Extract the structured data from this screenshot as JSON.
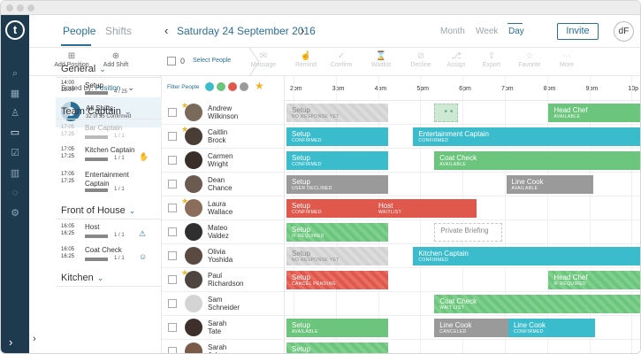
{
  "nav": {
    "logo": "t",
    "items": [
      {
        "name": "search-icon",
        "glyph": "⌕"
      },
      {
        "name": "calendar-icon",
        "glyph": "▦"
      },
      {
        "name": "user-icon",
        "glyph": "♙"
      },
      {
        "name": "inbox-icon",
        "glyph": "▭"
      },
      {
        "name": "check-icon",
        "glyph": "☑"
      },
      {
        "name": "bar-chart-icon",
        "glyph": "▥"
      },
      {
        "name": "chat-icon",
        "glyph": "◌"
      },
      {
        "name": "gear-icon",
        "glyph": "⚙"
      }
    ],
    "expand": "›"
  },
  "header": {
    "tab_people": "People",
    "tab_shifts": "Shifts",
    "prev": "‹",
    "date": "Saturday 24 September 2016",
    "next": "›",
    "range_month": "Month",
    "range_week": "Week",
    "range_day": "Day",
    "invite": "Invite",
    "user_initials": "dF"
  },
  "toolbar": {
    "add_position": "Add Position",
    "add_shift": "Add Shift",
    "selected_count": "0",
    "select_people": "Select People",
    "actions": [
      "Message",
      "Remind",
      "Confirm",
      "Waitlist",
      "Decline",
      "Assign",
      "Export",
      "Favorite",
      "More"
    ]
  },
  "sidebar": {
    "sorted_by_label": "Sorted by:",
    "sorted_by_value": "Position",
    "all_shifts_title": "All Shifts",
    "all_shifts_sub": "32 of 55 Confirmed",
    "all_shifts_confirmed_fraction": 0.58,
    "groups": [
      {
        "title": "General",
        "shifts": [
          {
            "time": "14:00\n15:00",
            "name": "Setup",
            "frac": "4 / 25",
            "faint": false
          }
        ]
      },
      {
        "title": "Team Captain",
        "shifts": [
          {
            "time": "17:05\n17:25",
            "name": "Bar Captain",
            "frac": "1 / 1",
            "faint": true
          },
          {
            "time": "17:05\n17:25",
            "name": "Kitchen Captain",
            "frac": "1 / 1",
            "faint": false
          },
          {
            "time": "17:05\n17:25",
            "name": "Entertainment\nCaptain",
            "frac": "1 / 1",
            "faint": false
          }
        ]
      },
      {
        "title": "Front of House",
        "shifts": [
          {
            "time": "16:05\n16:25",
            "name": "Host",
            "frac": "1 / 1",
            "faint": false
          },
          {
            "time": "16:05\n16:25",
            "name": "Coat Check",
            "frac": "1 / 1",
            "faint": false
          }
        ]
      },
      {
        "title": "Kitchen",
        "shifts": []
      }
    ]
  },
  "filter": {
    "label": "Filter People",
    "colors": [
      "#3bbccc",
      "#6cc57c",
      "#e0584c",
      "#9a9a9a"
    ]
  },
  "colors": {
    "brand": "#2a6f97",
    "nav_bg": "#1e3a4f",
    "teal": "#3bbccc",
    "green": "#6cc57c",
    "red": "#e0584c",
    "gray": "#9a9a9a",
    "star": "#f0b429"
  },
  "timeline": {
    "hours": [
      "2pm",
      "3pm",
      "4pm",
      "5pm",
      "6pm",
      "7pm",
      "8pm",
      "9pm",
      "10p"
    ]
  },
  "people": [
    {
      "name": "Andrew\nWilkinson",
      "star": true,
      "avatar": "#7a6a5c",
      "blocks": [
        {
          "title": "Setup",
          "sub": "No response yet",
          "style": "c-graystripe",
          "start": 0,
          "end": 2.4
        },
        {
          "title": "",
          "sub": "",
          "style": "c-dots",
          "start": 3.5,
          "end": 4.05,
          "dots": "• •"
        },
        {
          "title": "Head Chef",
          "sub": "Available",
          "style": "c-green",
          "start": 6.2,
          "end": 8.6
        }
      ]
    },
    {
      "name": "Caitlin\nBrock",
      "star": true,
      "avatar": "#4a3d36",
      "blocks": [
        {
          "title": "Setup",
          "sub": "Confirmed",
          "style": "c-teal",
          "start": 0,
          "end": 2.4
        },
        {
          "title": "Entertainment Captain",
          "sub": "Confirmed",
          "style": "c-teal",
          "start": 3.0,
          "end": 8.6
        }
      ]
    },
    {
      "name": "Carmen\nWright",
      "star": false,
      "avatar": "#3a2e2a",
      "blocks": [
        {
          "title": "Setup",
          "sub": "Confirmed",
          "style": "c-teal",
          "start": 0,
          "end": 2.4
        },
        {
          "title": "Coat Check",
          "sub": "Available",
          "style": "c-green",
          "start": 3.5,
          "end": 8.6
        }
      ]
    },
    {
      "name": "Dean\nChance",
      "star": false,
      "avatar": "#6b5a50",
      "blocks": [
        {
          "title": "Setup",
          "sub": "User declined",
          "style": "c-gray",
          "start": 0,
          "end": 2.4
        },
        {
          "title": "Line Cook",
          "sub": "Available",
          "style": "c-gray",
          "start": 5.2,
          "end": 7.25
        }
      ]
    },
    {
      "name": "Laura\nWallace",
      "star": true,
      "avatar": "#8a6d5a",
      "blocks": [
        {
          "title": "Setup",
          "sub": "Confirmed",
          "style": "c-red",
          "start": 0,
          "end": 2.4
        },
        {
          "title": "Host",
          "sub": "Waitlist",
          "style": "c-red",
          "start": 2.05,
          "end": 4.5
        }
      ]
    },
    {
      "name": "Mateo\nValdez",
      "star": false,
      "avatar": "#2f2f2f",
      "blocks": [
        {
          "title": "Setup",
          "sub": "If required",
          "style": "c-greenstripe",
          "start": 0,
          "end": 2.4
        },
        {
          "title": "Private Briefing",
          "sub": "",
          "style": "c-dashed",
          "start": 3.5,
          "end": 5.1
        }
      ]
    },
    {
      "name": "Olivia\nYoshida",
      "star": false,
      "avatar": "#5a4a42",
      "blocks": [
        {
          "title": "Setup",
          "sub": "No response yet",
          "style": "c-graystripe",
          "start": 0,
          "end": 2.4
        },
        {
          "title": "Kitchen Captain",
          "sub": "Confirmed",
          "style": "c-teal",
          "start": 3.0,
          "end": 8.6
        }
      ]
    },
    {
      "name": "Paul\nRichardson",
      "star": true,
      "avatar": "#4e4540",
      "blocks": [
        {
          "title": "Setup",
          "sub": "Cancel pending",
          "style": "c-redstripe",
          "start": 0,
          "end": 2.4
        },
        {
          "title": "Head Chef",
          "sub": "If required",
          "style": "c-greenstripe",
          "start": 6.2,
          "end": 8.6
        }
      ]
    },
    {
      "name": "Sam\nSchneider",
      "star": false,
      "avatar": "#d4d4d4",
      "blocks": [
        {
          "title": "Coat Check",
          "sub": "Wait list",
          "style": "c-greenstripe",
          "start": 3.5,
          "end": 8.6
        }
      ]
    },
    {
      "name": "Sarah\nTate",
      "star": false,
      "avatar": "#3d2f2a",
      "blocks": [
        {
          "title": "Setup",
          "sub": "Available",
          "style": "c-green",
          "start": 0,
          "end": 2.4
        },
        {
          "title": "Line Cook",
          "sub": "Canceled",
          "style": "c-gray",
          "start": 3.5,
          "end": 5.5
        },
        {
          "title": "Line Cook",
          "sub": "Confirmed",
          "style": "c-teal",
          "start": 5.25,
          "end": 7.3
        }
      ]
    },
    {
      "name": "Sarah\nJohnson",
      "star": false,
      "avatar": "#7a5b4a",
      "blocks": [
        {
          "title": "Setup",
          "sub": "",
          "style": "c-greenstripe",
          "start": 0,
          "end": 2.4
        }
      ]
    }
  ]
}
